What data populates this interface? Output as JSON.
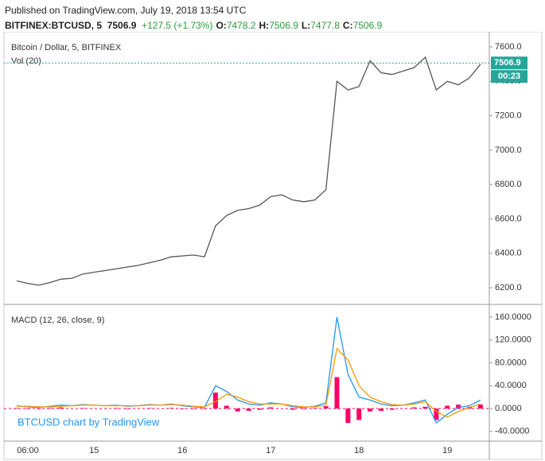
{
  "header": {
    "published": "Published on TradingView.com, July 19, 2018 13:54 UTC",
    "symbol": "BITFINEX:BTCUSD, 5",
    "last": "7506.9",
    "change": "+127.5 (+1.73%)",
    "ohlc": [
      {
        "label": "O:",
        "value": "7478.2"
      },
      {
        "label": "H:",
        "value": "7506.9"
      },
      {
        "label": "L:",
        "value": "7477.8"
      },
      {
        "label": "C:",
        "value": "7506.9"
      }
    ]
  },
  "chart_data": [
    {
      "type": "line",
      "title": "Bitcoin / Dollar, 5, BITFINEX",
      "subtitle": "Vol (20)",
      "categories": [
        null,
        "06:00",
        null,
        null,
        null,
        null,
        null,
        "15",
        null,
        null,
        null,
        null,
        null,
        null,
        null,
        "16",
        null,
        null,
        null,
        null,
        null,
        null,
        null,
        "17",
        null,
        null,
        null,
        null,
        null,
        null,
        null,
        "18",
        null,
        null,
        null,
        null,
        null,
        null,
        null,
        "19",
        null,
        null,
        null
      ],
      "series": [
        {
          "name": "BTCUSD",
          "color": "#555555",
          "values": [
            6240,
            6225,
            6215,
            6230,
            6250,
            6255,
            6280,
            6290,
            6300,
            6310,
            6320,
            6330,
            6345,
            6360,
            6380,
            6385,
            6390,
            6380,
            6560,
            6620,
            6650,
            6660,
            6680,
            6730,
            6740,
            6710,
            6700,
            6710,
            6770,
            7400,
            7350,
            7370,
            7520,
            7450,
            7440,
            7460,
            7480,
            7540,
            7350,
            7400,
            7380,
            7420,
            7500
          ]
        }
      ],
      "last_price": {
        "value": 7506.9,
        "label": "7506.9",
        "color": "#26a69a"
      },
      "countdown": "00:23",
      "ylim": [
        6103,
        7665
      ],
      "yticks": [
        {
          "value": 6200,
          "label": "6200.0"
        },
        {
          "value": 6400,
          "label": "6400.0"
        },
        {
          "value": 6600,
          "label": "6600.0"
        },
        {
          "value": 6800,
          "label": "6800.0"
        },
        {
          "value": 7000,
          "label": "7000.0"
        },
        {
          "value": 7200,
          "label": "7200.0"
        },
        {
          "value": 7400,
          "label": "7400.0"
        },
        {
          "value": 7600,
          "label": "7600.0"
        }
      ]
    },
    {
      "type": "macd",
      "title": "MACD (12, 26, close, 9)",
      "watermark": "BTCUSD chart by TradingView",
      "series": [
        {
          "name": "MACD",
          "color": "#2196f3",
          "values": [
            5,
            3,
            2,
            4,
            6,
            5,
            7,
            6,
            5,
            6,
            4,
            5,
            7,
            6,
            8,
            5,
            3,
            2,
            40,
            30,
            15,
            8,
            6,
            10,
            8,
            3,
            2,
            4,
            10,
            160,
            60,
            20,
            15,
            8,
            5,
            6,
            10,
            15,
            -25,
            -10,
            2,
            5,
            15
          ]
        },
        {
          "name": "Signal",
          "color": "#ff9800",
          "values": [
            4,
            4,
            3,
            3,
            4,
            5,
            6,
            6,
            5,
            5,
            5,
            5,
            6,
            6,
            7,
            6,
            4,
            3,
            12,
            25,
            20,
            12,
            8,
            8,
            8,
            5,
            3,
            3,
            6,
            105,
            85,
            40,
            20,
            12,
            7,
            6,
            8,
            12,
            -5,
            -15,
            -5,
            2,
            8
          ]
        },
        {
          "name": "Histogram",
          "color": "#ff0066",
          "values": [
            1,
            -1,
            -1,
            1,
            2,
            0,
            1,
            0,
            0,
            1,
            -1,
            0,
            1,
            0,
            1,
            -1,
            -1,
            -1,
            28,
            5,
            -5,
            -4,
            -2,
            2,
            0,
            -2,
            -1,
            1,
            4,
            55,
            -25,
            -20,
            -5,
            -4,
            -2,
            0,
            2,
            3,
            -20,
            5,
            7,
            3,
            7
          ]
        }
      ],
      "ylim": [
        -57,
        179.5
      ],
      "yticks": [
        {
          "value": -40,
          "label": "-40.0000"
        },
        {
          "value": 0,
          "label": "0.0000"
        },
        {
          "value": 40,
          "label": "40.0000"
        },
        {
          "value": 80,
          "label": "80.0000"
        },
        {
          "value": 120,
          "label": "120.0000"
        },
        {
          "value": 160,
          "label": "160.0000"
        }
      ]
    }
  ]
}
